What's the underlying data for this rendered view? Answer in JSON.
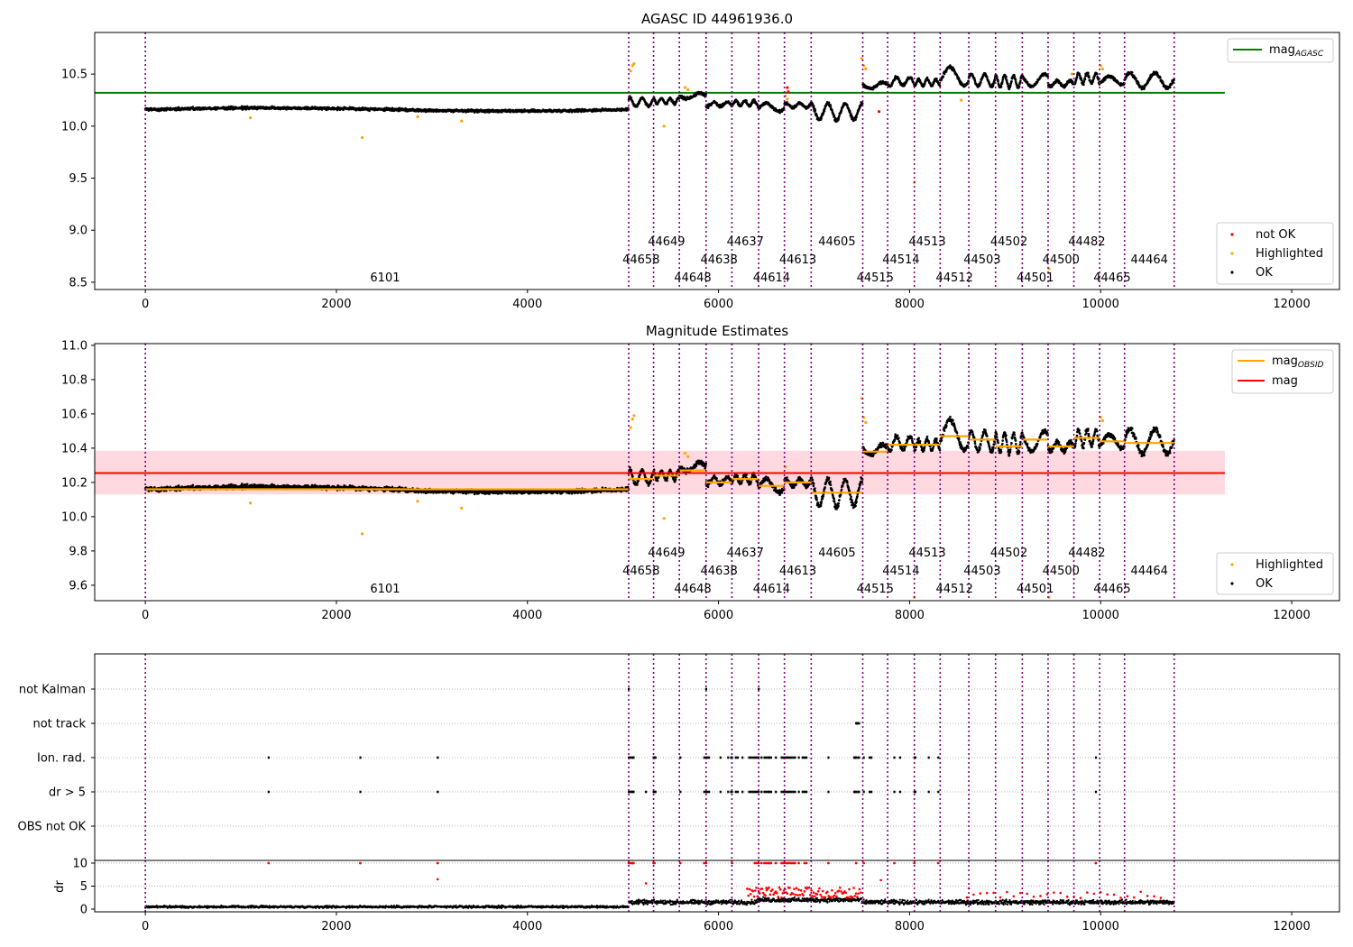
{
  "colors": {
    "ok": "#000000",
    "highlighted": "#ffa500",
    "not_ok": "#ff0000",
    "agasc_line": "#008000",
    "mag_line": "#ff0000",
    "mag_band": "#ffc0cb",
    "obsid_line": "#ffa500",
    "obsid_separator": "#800080",
    "flag_grid": "#b0b0b0"
  },
  "chart_data": [
    {
      "type": "scatter",
      "title": "AGASC ID 44961936.0",
      "xlabel": "",
      "ylabel": "",
      "xlim": [
        -530,
        12500
      ],
      "ylim": [
        8.43,
        10.9
      ],
      "xticks": [
        0,
        2000,
        4000,
        6000,
        8000,
        10000,
        12000
      ],
      "xtick_labels": [
        "0",
        "2000",
        "4000",
        "6000",
        "8000",
        "10000",
        "12000"
      ],
      "yticks": [
        8.5,
        9.0,
        9.5,
        10.0,
        10.5
      ],
      "ytick_labels": [
        "8.5",
        "9.0",
        "9.5",
        "10.0",
        "10.5"
      ],
      "grid": false,
      "legends": [
        {
          "placement": "top-right",
          "entries": [
            {
              "name": "mag",
              "subscript": "AGASC",
              "style": "line",
              "color": "#008000"
            }
          ]
        },
        {
          "placement": "bottom-right",
          "entries": [
            {
              "name": "not OK",
              "style": "dot",
              "color": "#ff0000"
            },
            {
              "name": "Highlighted",
              "style": "dot",
              "color": "#ffa500"
            },
            {
              "name": "OK",
              "style": "dot",
              "color": "#000000"
            }
          ]
        }
      ],
      "hlines": [
        {
          "name": "mag_AGASC",
          "y": 10.32,
          "x": [
            -530,
            11300
          ]
        }
      ],
      "obsid_boundaries": [
        0,
        5060,
        5320,
        5590,
        5870,
        6140,
        6420,
        6690,
        6970,
        7510,
        7770,
        8050,
        8320,
        8620,
        8900,
        9180,
        9450,
        9720,
        9990,
        10250,
        10770
      ],
      "obsid_labels": [
        {
          "obsid": "6101",
          "x": 2510,
          "row": 3
        },
        {
          "obsid": "44658",
          "x": 5190,
          "row": 2
        },
        {
          "obsid": "44649",
          "x": 5455,
          "row": 1
        },
        {
          "obsid": "44648",
          "x": 5730,
          "row": 3
        },
        {
          "obsid": "44638",
          "x": 6005,
          "row": 2
        },
        {
          "obsid": "44637",
          "x": 6280,
          "row": 1
        },
        {
          "obsid": "44614",
          "x": 6555,
          "row": 3
        },
        {
          "obsid": "44613",
          "x": 6830,
          "row": 2
        },
        {
          "obsid": "44605",
          "x": 7240,
          "row": 1
        },
        {
          "obsid": "44515",
          "x": 7640,
          "row": 3
        },
        {
          "obsid": "44514",
          "x": 7910,
          "row": 2
        },
        {
          "obsid": "44513",
          "x": 8185,
          "row": 1
        },
        {
          "obsid": "44512",
          "x": 8470,
          "row": 3
        },
        {
          "obsid": "44503",
          "x": 8760,
          "row": 2
        },
        {
          "obsid": "44502",
          "x": 9040,
          "row": 1
        },
        {
          "obsid": "44501",
          "x": 9315,
          "row": 3
        },
        {
          "obsid": "44500",
          "x": 9585,
          "row": 2
        },
        {
          "obsid": "44482",
          "x": 9855,
          "row": 1
        },
        {
          "obsid": "44465",
          "x": 10120,
          "row": 3
        },
        {
          "obsid": "44464",
          "x": 10510,
          "row": 2
        }
      ],
      "series": [
        {
          "name": "OK",
          "kind": "mag_trace"
        },
        {
          "name": "Highlighted",
          "kind": "outliers",
          "points": [
            [
              1100,
              10.08
            ],
            [
              2270,
              9.89
            ],
            [
              2850,
              10.09
            ],
            [
              3310,
              10.05
            ],
            [
              5080,
              10.53
            ],
            [
              5100,
              10.58
            ],
            [
              5115,
              10.6
            ],
            [
              5430,
              10.0
            ],
            [
              5650,
              10.37
            ],
            [
              5680,
              10.35
            ],
            [
              6700,
              10.29
            ],
            [
              6720,
              10.26
            ],
            [
              7500,
              10.65
            ],
            [
              7520,
              10.58
            ],
            [
              7540,
              10.55
            ],
            [
              8050,
              9.46
            ],
            [
              8540,
              10.25
            ],
            [
              9460,
              8.63
            ],
            [
              9700,
              10.5
            ],
            [
              10000,
              10.58
            ],
            [
              10020,
              10.55
            ]
          ]
        },
        {
          "name": "not OK",
          "kind": "outliers",
          "points": [
            [
              6720,
              10.37
            ],
            [
              6730,
              10.33
            ],
            [
              7680,
              10.14
            ]
          ]
        }
      ],
      "trace_segments": [
        {
          "x": [
            0,
            5060
          ],
          "base": 10.16,
          "amp": 0.015,
          "noise": 0.018
        },
        {
          "x": [
            5060,
            5320
          ],
          "base": 10.23,
          "amp": 0.04,
          "noise": 0.02
        },
        {
          "x": [
            5320,
            5590
          ],
          "base": 10.24,
          "amp": 0.025,
          "noise": 0.02
        },
        {
          "x": [
            5590,
            5870
          ],
          "base": 10.29,
          "amp": 0.025,
          "noise": 0.02
        },
        {
          "x": [
            5870,
            6140
          ],
          "base": 10.21,
          "amp": 0.02,
          "noise": 0.02
        },
        {
          "x": [
            6140,
            6420
          ],
          "base": 10.22,
          "amp": 0.025,
          "noise": 0.02
        },
        {
          "x": [
            6420,
            6690
          ],
          "base": 10.18,
          "amp": 0.04,
          "noise": 0.02
        },
        {
          "x": [
            6690,
            6970
          ],
          "base": 10.2,
          "amp": 0.02,
          "noise": 0.02
        },
        {
          "x": [
            6970,
            7510
          ],
          "base": 10.14,
          "amp": 0.08,
          "noise": 0.025
        },
        {
          "x": [
            7510,
            7770
          ],
          "base": 10.39,
          "amp": 0.03,
          "noise": 0.02
        },
        {
          "x": [
            7770,
            8050
          ],
          "base": 10.43,
          "amp": 0.04,
          "noise": 0.02
        },
        {
          "x": [
            8050,
            8320
          ],
          "base": 10.42,
          "amp": 0.03,
          "noise": 0.02
        },
        {
          "x": [
            8320,
            8620
          ],
          "base": 10.48,
          "amp": 0.09,
          "noise": 0.025
        },
        {
          "x": [
            8620,
            8900
          ],
          "base": 10.44,
          "amp": 0.06,
          "noise": 0.02
        },
        {
          "x": [
            8900,
            9180
          ],
          "base": 10.43,
          "amp": 0.06,
          "noise": 0.02
        },
        {
          "x": [
            9180,
            9450
          ],
          "base": 10.44,
          "amp": 0.06,
          "noise": 0.02
        },
        {
          "x": [
            9450,
            9720
          ],
          "base": 10.41,
          "amp": 0.03,
          "noise": 0.02
        },
        {
          "x": [
            9720,
            9990
          ],
          "base": 10.46,
          "amp": 0.05,
          "noise": 0.025
        },
        {
          "x": [
            9990,
            10250
          ],
          "base": 10.44,
          "amp": 0.04,
          "noise": 0.02
        },
        {
          "x": [
            10250,
            10770
          ],
          "base": 10.44,
          "amp": 0.07,
          "noise": 0.025
        }
      ]
    },
    {
      "type": "scatter",
      "title": "Magnitude Estimates",
      "xlabel": "",
      "ylabel": "",
      "xlim": [
        -530,
        12500
      ],
      "ylim": [
        9.51,
        11.01
      ],
      "xticks": [
        0,
        2000,
        4000,
        6000,
        8000,
        10000,
        12000
      ],
      "xtick_labels": [
        "0",
        "2000",
        "4000",
        "6000",
        "8000",
        "10000",
        "12000"
      ],
      "yticks": [
        9.6,
        9.8,
        10.0,
        10.2,
        10.4,
        10.6,
        10.8,
        11.0
      ],
      "ytick_labels": [
        "9.6",
        "9.8",
        "10.0",
        "10.2",
        "10.4",
        "10.6",
        "10.8",
        "11.0"
      ],
      "grid": false,
      "legends": [
        {
          "placement": "top-right",
          "entries": [
            {
              "name": "mag",
              "subscript": "OBSID",
              "style": "line",
              "color": "#ffa500"
            },
            {
              "name": "mag",
              "style": "line",
              "color": "#ff0000"
            }
          ]
        },
        {
          "placement": "bottom-right",
          "entries": [
            {
              "name": "Highlighted",
              "style": "dot",
              "color": "#ffa500"
            },
            {
              "name": "OK",
              "style": "dot",
              "color": "#000000"
            }
          ]
        }
      ],
      "hlines": [
        {
          "name": "mag",
          "y": 10.255,
          "x": [
            -530,
            11300
          ]
        }
      ],
      "band": {
        "y": [
          10.13,
          10.385
        ],
        "x": [
          -530,
          11300
        ]
      },
      "obsid_mag": [
        10.16,
        10.22,
        10.24,
        10.27,
        10.2,
        10.22,
        10.18,
        10.2,
        10.14,
        10.38,
        10.42,
        10.42,
        10.47,
        10.45,
        10.41,
        10.45,
        10.41,
        10.46,
        10.44,
        10.43
      ],
      "series": [
        {
          "name": "OK",
          "kind": "mag_trace"
        },
        {
          "name": "Highlighted",
          "kind": "outliers",
          "points": [
            [
              1100,
              10.08
            ],
            [
              2270,
              9.9
            ],
            [
              2850,
              10.09
            ],
            [
              3310,
              10.05
            ],
            [
              5080,
              10.52
            ],
            [
              5100,
              10.57
            ],
            [
              5115,
              10.59
            ],
            [
              5430,
              9.99
            ],
            [
              5650,
              10.37
            ],
            [
              5680,
              10.35
            ],
            [
              6700,
              10.29
            ],
            [
              7500,
              10.69
            ],
            [
              7520,
              10.58
            ],
            [
              7540,
              10.55
            ],
            [
              8050,
              9.53
            ],
            [
              9460,
              9.53
            ],
            [
              10000,
              10.58
            ],
            [
              10020,
              10.56
            ]
          ]
        }
      ]
    },
    {
      "type": "scatter",
      "title": "",
      "xlabel": "",
      "ylabel": "",
      "xlim": [
        -530,
        12500
      ],
      "flags": [
        "not Kalman",
        "not track",
        "Ion. rad.",
        "dr > 5",
        "OBS not OK"
      ],
      "flag_points": {
        "not Kalman": [
          5060,
          5870,
          6420
        ],
        "not track": [
          7440,
          7450,
          7460,
          7470
        ],
        "Ion. rad.": [
          1290,
          2250,
          3060,
          5060,
          5070,
          5090,
          5100,
          5110,
          5320,
          5330,
          5340,
          5600,
          5850,
          5870,
          5880,
          5900,
          6020,
          6100,
          6130,
          6140,
          6180,
          6200,
          6250,
          6320,
          6340,
          6360,
          6380,
          6400,
          6420,
          6450,
          6480,
          6500,
          6520,
          6530,
          6550,
          6600,
          6660,
          6680,
          6700,
          6720,
          6740,
          6760,
          6780,
          6800,
          6840,
          6880,
          6900,
          6920,
          7150,
          7420,
          7430,
          7440,
          7460,
          7470,
          7520,
          7580,
          7600,
          7840,
          7900,
          8050,
          8060,
          8200,
          8300,
          9950
        ],
        "dr > 5": [
          1290,
          2250,
          3060,
          5060,
          5070,
          5090,
          5100,
          5110,
          5240,
          5320,
          5330,
          5340,
          5600,
          5850,
          5870,
          5880,
          5900,
          6020,
          6100,
          6130,
          6140,
          6180,
          6200,
          6250,
          6320,
          6340,
          6360,
          6380,
          6400,
          6420,
          6450,
          6480,
          6500,
          6520,
          6530,
          6550,
          6600,
          6660,
          6680,
          6700,
          6720,
          6740,
          6760,
          6780,
          6800,
          6840,
          6880,
          6900,
          6920,
          7150,
          7420,
          7430,
          7440,
          7460,
          7470,
          7520,
          7580,
          7600,
          7840,
          7900,
          8050,
          8060,
          8200,
          8300,
          9950
        ],
        "OBS not OK": []
      },
      "dr_panel": {
        "ylabel": "dr",
        "ylim": [
          -0.5,
          10.5
        ],
        "yticks": [
          0,
          5,
          10
        ],
        "ytick_labels": [
          "0",
          "5",
          "10"
        ],
        "clip_points": [
          1290,
          2250,
          3060,
          5060,
          5070,
          5090,
          5100,
          5110,
          5320,
          5330,
          5600,
          5850,
          5870,
          6140,
          6380,
          6400,
          6420,
          6450,
          6480,
          6500,
          6520,
          6530,
          6550,
          6600,
          6660,
          6680,
          6700,
          6720,
          6740,
          6760,
          6780,
          6800,
          6840,
          6900,
          6920,
          7150,
          7440,
          7520,
          7840,
          8050,
          8300,
          9950
        ],
        "extra_red_points": [
          [
            3060,
            6.5
          ],
          [
            5240,
            5.6
          ],
          [
            7700,
            6.3
          ],
          [
            6500,
            4.6
          ],
          [
            8620,
            4.5
          ]
        ]
      }
    }
  ]
}
